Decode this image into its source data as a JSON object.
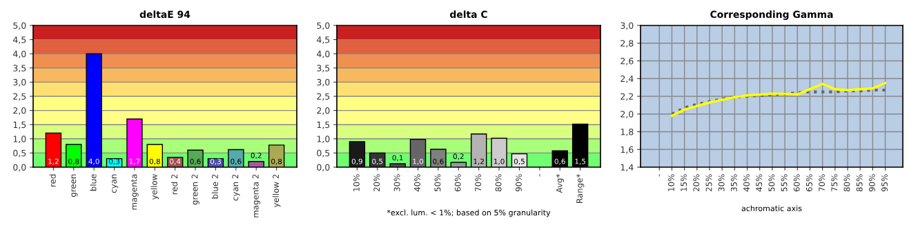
{
  "chart_data": [
    {
      "type": "bar",
      "title": "deltaE 94",
      "categories": [
        "red",
        "green",
        "blue",
        "cyan",
        "magenta",
        "yellow",
        "red 2",
        "green 2",
        "blue 2",
        "cyan 2",
        "magenta 2",
        "yellow 2"
      ],
      "values": [
        1.2,
        0.8,
        4.0,
        0.3,
        1.7,
        0.8,
        0.35,
        0.6,
        0.3,
        0.62,
        0.2,
        0.78
      ],
      "colors": [
        "#ff0000",
        "#00ff00",
        "#0000ff",
        "#00ffff",
        "#ff00ff",
        "#ffff00",
        "#a0504f",
        "#55aa55",
        "#5050b0",
        "#55aaaa",
        "#aa55aa",
        "#aaaa55"
      ],
      "value_labels": [
        "1,2",
        "0,8",
        "4,0",
        "0,3",
        "1,7",
        "0,8",
        "0,4",
        "0,6",
        "0,3",
        "0,6",
        "0,2",
        "0,8"
      ],
      "ylim": [
        0,
        5
      ],
      "yticks": [
        {
          "value": 0,
          "label": "0,0"
        },
        {
          "value": 0.5,
          "label": "0,5"
        },
        {
          "value": 1,
          "label": "1,0"
        },
        {
          "value": 1.5,
          "label": "1,5"
        },
        {
          "value": 2,
          "label": "2,0"
        },
        {
          "value": 2.5,
          "label": "2,5"
        },
        {
          "value": 3,
          "label": "3,0"
        },
        {
          "value": 3.5,
          "label": "3,5"
        },
        {
          "value": 4,
          "label": "4,0"
        },
        {
          "value": 4.5,
          "label": "4,5"
        },
        {
          "value": 5,
          "label": "5,0"
        }
      ],
      "bands": [
        {
          "axis": "y",
          "from": 0,
          "to": 0.5,
          "color": "#70ff70"
        },
        {
          "axis": "y",
          "from": 0.5,
          "to": 1,
          "color": "#a8ff78"
        },
        {
          "axis": "y",
          "from": 1,
          "to": 1.5,
          "color": "#d8ff80"
        },
        {
          "axis": "y",
          "from": 1.5,
          "to": 2,
          "color": "#ffff88"
        },
        {
          "axis": "y",
          "from": 2,
          "to": 2.5,
          "color": "#ffff80"
        },
        {
          "axis": "y",
          "from": 2.5,
          "to": 3,
          "color": "#ffe070"
        },
        {
          "axis": "y",
          "from": 3,
          "to": 3.5,
          "color": "#f8b860"
        },
        {
          "axis": "y",
          "from": 3.5,
          "to": 4,
          "color": "#f09050"
        },
        {
          "axis": "y",
          "from": 4,
          "to": 4.5,
          "color": "#e06040"
        },
        {
          "axis": "y",
          "from": 4.5,
          "to": 5,
          "color": "#c82020"
        }
      ],
      "grid": "y"
    },
    {
      "type": "bar",
      "title": "delta C",
      "categories": [
        "10%",
        "20%",
        "30%",
        "40%",
        "50%",
        "60%",
        "70%",
        "80%",
        "90%",
        "-",
        "Avg*",
        "Range*"
      ],
      "values": [
        0.9,
        0.5,
        0.12,
        0.98,
        0.63,
        0.17,
        1.17,
        1.02,
        0.47,
        null,
        0.58,
        1.52
      ],
      "colors": [
        "#1a1a1a",
        "#333333",
        "#4d4d4d",
        "#666666",
        "#808080",
        "#999999",
        "#b3b3b3",
        "#cccccc",
        "#e6e6e6",
        "#ffffff",
        "#000000",
        "#000000"
      ],
      "value_labels": [
        "0,9",
        "0,5",
        "0,1",
        "1,0",
        "0,6",
        "0,2",
        "1,2",
        "1,0",
        "0,5",
        null,
        "0,6",
        "1,5"
      ],
      "ylim": [
        0,
        5
      ],
      "yticks": [
        {
          "value": 0,
          "label": "0,0"
        },
        {
          "value": 0.5,
          "label": "0,5"
        },
        {
          "value": 1,
          "label": "1,0"
        },
        {
          "value": 1.5,
          "label": "1,5"
        },
        {
          "value": 2,
          "label": "2,0"
        },
        {
          "value": 2.5,
          "label": "2,5"
        },
        {
          "value": 3,
          "label": "3,0"
        },
        {
          "value": 3.5,
          "label": "3,5"
        },
        {
          "value": 4,
          "label": "4,0"
        },
        {
          "value": 4.5,
          "label": "4,5"
        },
        {
          "value": 5,
          "label": "5,0"
        }
      ],
      "annotations": [
        "*excl. lum. < 1%; based on 5% granularity"
      ],
      "bands": [
        {
          "axis": "y",
          "from": 0,
          "to": 0.5,
          "color": "#70ff70"
        },
        {
          "axis": "y",
          "from": 0.5,
          "to": 1,
          "color": "#a8ff78"
        },
        {
          "axis": "y",
          "from": 1,
          "to": 1.5,
          "color": "#d8ff80"
        },
        {
          "axis": "y",
          "from": 1.5,
          "to": 2,
          "color": "#ffff88"
        },
        {
          "axis": "y",
          "from": 2,
          "to": 2.5,
          "color": "#ffff80"
        },
        {
          "axis": "y",
          "from": 2.5,
          "to": 3,
          "color": "#ffe070"
        },
        {
          "axis": "y",
          "from": 3,
          "to": 3.5,
          "color": "#f8b860"
        },
        {
          "axis": "y",
          "from": 3.5,
          "to": 4,
          "color": "#f09050"
        },
        {
          "axis": "y",
          "from": 4,
          "to": 4.5,
          "color": "#e06040"
        },
        {
          "axis": "y",
          "from": 4.5,
          "to": 5,
          "color": "#c82020"
        }
      ],
      "grid": "y"
    },
    {
      "type": "line",
      "title": "Corresponding Gamma",
      "xlabel": "achromatic axis",
      "categories": [
        "-",
        "10%",
        "15%",
        "20%",
        "25%",
        "30%",
        "35%",
        "40%",
        "45%",
        "50%",
        "55%",
        "60%",
        "65%",
        "70%",
        "75%",
        "80%",
        "85%",
        "90%",
        "95%"
      ],
      "series": [
        {
          "color": "#666666",
          "line_style": "dotted",
          "values": [
            null,
            2.0,
            2.07,
            2.11,
            2.14,
            2.17,
            2.19,
            2.2,
            2.21,
            2.22,
            2.23,
            2.24,
            2.25,
            2.25,
            2.25,
            2.26,
            2.26,
            2.27,
            2.27
          ]
        },
        {
          "color": "#ffff00",
          "line_style": "solid",
          "values": [
            null,
            1.98,
            2.05,
            2.09,
            2.13,
            2.16,
            2.19,
            2.21,
            2.22,
            2.23,
            2.23,
            2.22,
            2.28,
            2.34,
            2.28,
            2.27,
            2.28,
            2.29,
            2.35
          ]
        }
      ],
      "ylim": [
        1.4,
        3.0
      ],
      "yticks": [
        {
          "value": 1.4,
          "label": "1,4"
        },
        {
          "value": 1.6,
          "label": "1,6"
        },
        {
          "value": 1.8,
          "label": "1,8"
        },
        {
          "value": 2.0,
          "label": "2,0"
        },
        {
          "value": 2.2,
          "label": "2,2"
        },
        {
          "value": 2.4,
          "label": "2,4"
        },
        {
          "value": 2.6,
          "label": "2,6"
        },
        {
          "value": 2.8,
          "label": "2,8"
        },
        {
          "value": 3.0,
          "label": "3,0"
        }
      ],
      "grid": true
    }
  ]
}
